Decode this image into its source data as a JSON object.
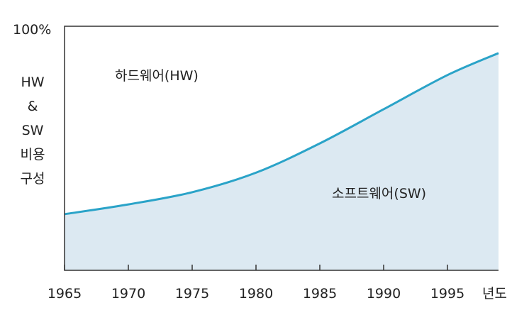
{
  "chart_data": {
    "type": "area",
    "x_ticks": [
      "1965",
      "1970",
      "1975",
      "1980",
      "1985",
      "1990",
      "1995"
    ],
    "x_unit_label": "년도",
    "y_top_label": "100%",
    "y_label_lines": [
      "HW",
      "&",
      "SW",
      "비용",
      "구성"
    ],
    "region_labels": {
      "hardware": "하드웨어(HW)",
      "software": "소프트웨어(SW)"
    },
    "xlim": [
      1965,
      1999
    ],
    "ylim": [
      0,
      100
    ],
    "series": [
      {
        "name": "소프트웨어(SW)",
        "x": [
          1965,
          1970,
          1975,
          1980,
          1985,
          1990,
          1995,
          1999
        ],
        "values": [
          23,
          27,
          32,
          40,
          52,
          66,
          80,
          89
        ]
      }
    ],
    "colors": {
      "line": "#2aa3c8",
      "fill": "#dce9f2",
      "axis": "#333333"
    },
    "grid": false
  }
}
